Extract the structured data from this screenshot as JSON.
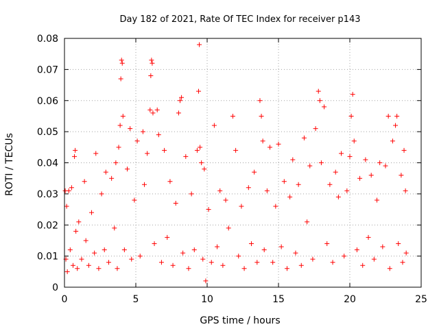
{
  "chart_data": {
    "type": "scatter",
    "title": "Day 182 of 2021, Rate Of TEC Index for receiver p143",
    "xlabel": "GPS time / hours",
    "ylabel": "ROTI / TECUs",
    "xlim": [
      0,
      25
    ],
    "ylim": [
      0,
      0.08
    ],
    "x_ticks": [
      0,
      5,
      10,
      15,
      20,
      25
    ],
    "x_tick_labels": [
      "0",
      "5",
      "10",
      "15",
      "20",
      "25"
    ],
    "y_ticks": [
      0,
      0.01,
      0.02,
      0.03,
      0.04,
      0.05,
      0.06,
      0.07,
      0.08
    ],
    "y_tick_labels": [
      "0",
      "0.01",
      "0.02",
      "0.03",
      "0.04",
      "0.05",
      "0.06",
      "0.07",
      "0.08"
    ],
    "grid": true,
    "marker": "+",
    "series": [
      {
        "name": "ROTI",
        "color": "#ff0000",
        "points": [
          [
            0.05,
            0.031
          ],
          [
            0.1,
            0.009
          ],
          [
            0.15,
            0.026
          ],
          [
            0.2,
            0.005
          ],
          [
            0.3,
            0.031
          ],
          [
            0.4,
            0.012
          ],
          [
            0.5,
            0.032
          ],
          [
            0.6,
            0.007
          ],
          [
            0.7,
            0.042
          ],
          [
            0.75,
            0.044
          ],
          [
            0.8,
            0.018
          ],
          [
            0.9,
            0.006
          ],
          [
            1.0,
            0.021
          ],
          [
            1.2,
            0.009
          ],
          [
            1.4,
            0.034
          ],
          [
            1.5,
            0.015
          ],
          [
            1.7,
            0.007
          ],
          [
            1.9,
            0.024
          ],
          [
            2.1,
            0.011
          ],
          [
            2.2,
            0.043
          ],
          [
            2.4,
            0.006
          ],
          [
            2.6,
            0.03
          ],
          [
            2.8,
            0.012
          ],
          [
            2.9,
            0.037
          ],
          [
            3.1,
            0.008
          ],
          [
            3.3,
            0.035
          ],
          [
            3.5,
            0.019
          ],
          [
            3.6,
            0.04
          ],
          [
            3.7,
            0.006
          ],
          [
            3.8,
            0.045
          ],
          [
            3.9,
            0.052
          ],
          [
            3.95,
            0.067
          ],
          [
            4.0,
            0.073
          ],
          [
            4.05,
            0.072
          ],
          [
            4.1,
            0.055
          ],
          [
            4.2,
            0.012
          ],
          [
            4.4,
            0.038
          ],
          [
            4.6,
            0.051
          ],
          [
            4.7,
            0.009
          ],
          [
            4.9,
            0.028
          ],
          [
            5.1,
            0.047
          ],
          [
            5.3,
            0.01
          ],
          [
            5.5,
            0.05
          ],
          [
            5.6,
            0.033
          ],
          [
            5.8,
            0.043
          ],
          [
            6.0,
            0.057
          ],
          [
            6.05,
            0.068
          ],
          [
            6.1,
            0.073
          ],
          [
            6.15,
            0.072
          ],
          [
            6.2,
            0.056
          ],
          [
            6.3,
            0.014
          ],
          [
            6.5,
            0.057
          ],
          [
            6.6,
            0.049
          ],
          [
            6.8,
            0.008
          ],
          [
            7.0,
            0.044
          ],
          [
            7.2,
            0.016
          ],
          [
            7.4,
            0.034
          ],
          [
            7.6,
            0.007
          ],
          [
            7.8,
            0.027
          ],
          [
            8.0,
            0.056
          ],
          [
            8.1,
            0.06
          ],
          [
            8.2,
            0.061
          ],
          [
            8.3,
            0.011
          ],
          [
            8.5,
            0.042
          ],
          [
            8.7,
            0.006
          ],
          [
            8.9,
            0.03
          ],
          [
            9.1,
            0.012
          ],
          [
            9.3,
            0.044
          ],
          [
            9.4,
            0.063
          ],
          [
            9.45,
            0.078
          ],
          [
            9.5,
            0.045
          ],
          [
            9.6,
            0.04
          ],
          [
            9.7,
            0.009
          ],
          [
            9.8,
            0.038
          ],
          [
            9.9,
            0.002
          ],
          [
            10.1,
            0.025
          ],
          [
            10.3,
            0.008
          ],
          [
            10.5,
            0.052
          ],
          [
            10.7,
            0.013
          ],
          [
            10.9,
            0.031
          ],
          [
            11.1,
            0.007
          ],
          [
            11.3,
            0.028
          ],
          [
            11.5,
            0.019
          ],
          [
            11.8,
            0.055
          ],
          [
            12.0,
            0.044
          ],
          [
            12.2,
            0.01
          ],
          [
            12.4,
            0.026
          ],
          [
            12.6,
            0.006
          ],
          [
            12.9,
            0.032
          ],
          [
            13.1,
            0.014
          ],
          [
            13.3,
            0.037
          ],
          [
            13.5,
            0.008
          ],
          [
            13.7,
            0.06
          ],
          [
            13.8,
            0.055
          ],
          [
            13.9,
            0.047
          ],
          [
            14.0,
            0.012
          ],
          [
            14.2,
            0.031
          ],
          [
            14.4,
            0.045
          ],
          [
            14.6,
            0.008
          ],
          [
            14.8,
            0.026
          ],
          [
            15.0,
            0.046
          ],
          [
            15.2,
            0.013
          ],
          [
            15.4,
            0.034
          ],
          [
            15.6,
            0.006
          ],
          [
            15.8,
            0.029
          ],
          [
            16.0,
            0.041
          ],
          [
            16.2,
            0.011
          ],
          [
            16.4,
            0.033
          ],
          [
            16.6,
            0.007
          ],
          [
            16.8,
            0.048
          ],
          [
            17.0,
            0.021
          ],
          [
            17.2,
            0.039
          ],
          [
            17.4,
            0.009
          ],
          [
            17.6,
            0.051
          ],
          [
            17.8,
            0.063
          ],
          [
            17.9,
            0.06
          ],
          [
            18.0,
            0.04
          ],
          [
            18.2,
            0.058
          ],
          [
            18.4,
            0.014
          ],
          [
            18.6,
            0.033
          ],
          [
            18.8,
            0.008
          ],
          [
            19.0,
            0.037
          ],
          [
            19.2,
            0.029
          ],
          [
            19.4,
            0.043
          ],
          [
            19.6,
            0.01
          ],
          [
            19.8,
            0.031
          ],
          [
            20.0,
            0.042
          ],
          [
            20.1,
            0.055
          ],
          [
            20.2,
            0.062
          ],
          [
            20.3,
            0.047
          ],
          [
            20.5,
            0.012
          ],
          [
            20.7,
            0.035
          ],
          [
            20.9,
            0.007
          ],
          [
            21.1,
            0.041
          ],
          [
            21.3,
            0.016
          ],
          [
            21.5,
            0.036
          ],
          [
            21.7,
            0.009
          ],
          [
            21.9,
            0.028
          ],
          [
            22.1,
            0.04
          ],
          [
            22.3,
            0.013
          ],
          [
            22.5,
            0.039
          ],
          [
            22.7,
            0.055
          ],
          [
            22.8,
            0.006
          ],
          [
            23.0,
            0.047
          ],
          [
            23.2,
            0.052
          ],
          [
            23.3,
            0.055
          ],
          [
            23.4,
            0.014
          ],
          [
            23.6,
            0.036
          ],
          [
            23.7,
            0.008
          ],
          [
            23.8,
            0.044
          ],
          [
            23.9,
            0.031
          ],
          [
            23.95,
            0.011
          ]
        ]
      }
    ]
  }
}
